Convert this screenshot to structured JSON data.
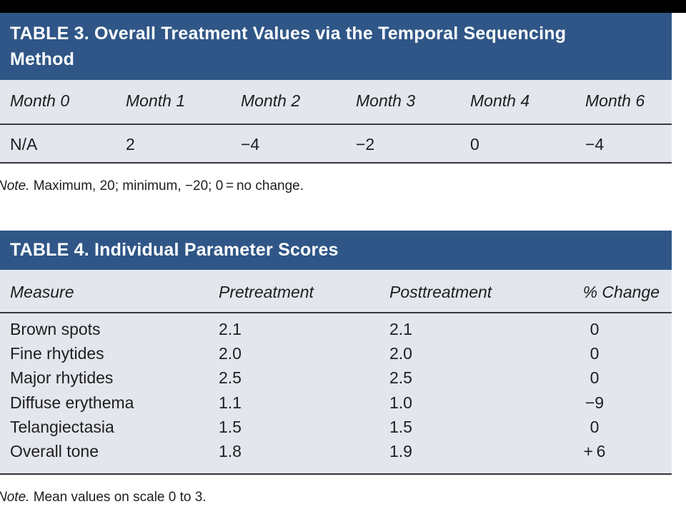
{
  "table3": {
    "title_line1": "TABLE 3. Overall Treatment Values via the Temporal Sequencing",
    "title_line2": "Method",
    "headers": [
      "Month 0",
      "Month 1",
      "Month 2",
      "Month 3",
      "Month 4",
      "Month 6"
    ],
    "values": [
      "N/A",
      "2",
      "−4",
      "−2",
      "0",
      "−4"
    ],
    "note_label": "Note.",
    "note_text": " Maximum, 20; minimum, −20; 0 = no change."
  },
  "table4": {
    "title": "TABLE 4. Individual Parameter Scores",
    "headers": [
      "Measure",
      "Pretreatment",
      "Posttreatment",
      "% Change"
    ],
    "rows": [
      [
        "Brown spots",
        "2.1",
        "2.1",
        "0"
      ],
      [
        "Fine rhytides",
        "2.0",
        "2.0",
        "0"
      ],
      [
        "Major rhytides",
        "2.5",
        "2.5",
        "0"
      ],
      [
        "Diffuse erythema",
        "1.1",
        "1.0",
        "−9"
      ],
      [
        "Telangiectasia",
        "1.5",
        "1.5",
        "0"
      ],
      [
        "Overall tone",
        "1.8",
        "1.9",
        "+ 6"
      ]
    ],
    "note_label": "Note.",
    "note_text": " Mean values on scale 0 to 3."
  }
}
